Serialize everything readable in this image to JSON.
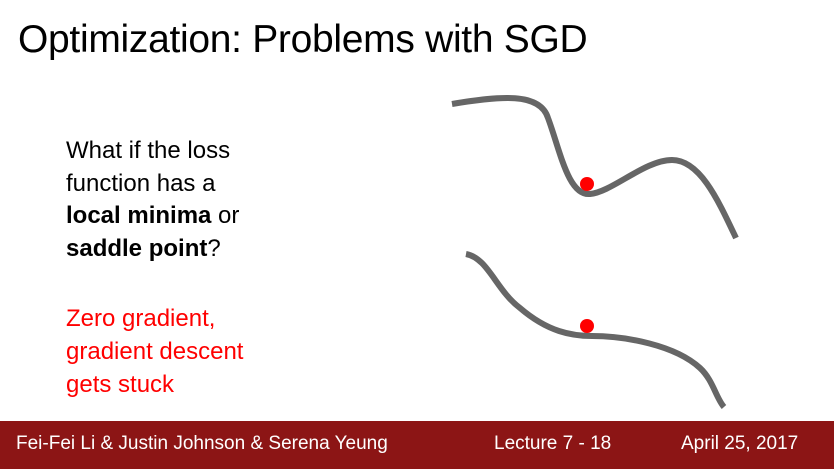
{
  "slide": {
    "title": "Optimization: Problems with SGD",
    "question": {
      "line1": "What if the loss",
      "line2": "function has a",
      "line3_bold": "local minima",
      "line3_rest": " or",
      "line4_bold": "saddle point",
      "line4_rest": "?"
    },
    "answer": {
      "line1": "Zero gradient,",
      "line2": "gradient descent",
      "line3": "gets stuck"
    }
  },
  "footer": {
    "authors": "Fei-Fei Li & Justin Johnson & Serena Yeung",
    "lecture": "Lecture 7 - 18",
    "date": "April 25, 2017"
  },
  "colors": {
    "footer_bg": "#8c1515",
    "curve": "#666666",
    "point": "#ff0000",
    "answer_text": "#ff0000"
  }
}
